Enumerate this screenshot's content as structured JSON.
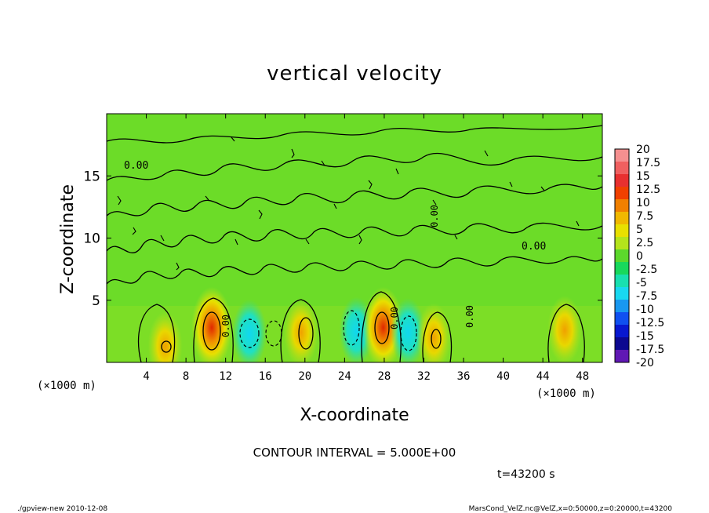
{
  "chart_data": {
    "type": "heatmap",
    "title": "vertical velocity",
    "xlabel": "X-coordinate",
    "ylabel": "Z-coordinate",
    "x_unit": "(×1000 m)",
    "y_unit": "(×1000 m)",
    "x_ticks": [
      4,
      8,
      12,
      16,
      20,
      24,
      28,
      32,
      36,
      40,
      44,
      48
    ],
    "y_ticks": [
      5,
      10,
      15
    ],
    "xlim": [
      0,
      50
    ],
    "ylim": [
      0,
      20
    ],
    "contour_labels": [
      "0.00",
      "0.00",
      "0.00",
      "0.00",
      "0.00",
      "0.00"
    ],
    "contour_interval_text": "CONTOUR INTERVAL = 5.000E+00",
    "time_text": "t=43200 s",
    "colorbar": {
      "labels": [
        "20",
        "17.5",
        "15",
        "12.5",
        "10",
        "7.5",
        "5",
        "2.5",
        "0",
        "-2.5",
        "-5",
        "-7.5",
        "-10",
        "-12.5",
        "-15",
        "-17.5",
        "-20"
      ],
      "colors": [
        "#f59090",
        "#f06060",
        "#e83030",
        "#f04000",
        "#f08000",
        "#f0b800",
        "#e8e000",
        "#b4e41c",
        "#5cd82c",
        "#18d85c",
        "#18e0b0",
        "#18d8f0",
        "#1898f0",
        "#1050f0",
        "#0818d0",
        "#0c0890",
        "#6018b4"
      ]
    },
    "features": [
      {
        "x": 10.6,
        "z": 2.8,
        "value": 10,
        "kind": "updraft"
      },
      {
        "x": 14.4,
        "z": 2.3,
        "value": -5,
        "kind": "downdraft"
      },
      {
        "x": 19.6,
        "z": 2.4,
        "value": 5,
        "kind": "updraft"
      },
      {
        "x": 25.2,
        "z": 2.5,
        "value": -7.5,
        "kind": "downdraft"
      },
      {
        "x": 27.9,
        "z": 2.8,
        "value": 15,
        "kind": "updraft"
      },
      {
        "x": 30.4,
        "z": 2.4,
        "value": -7.5,
        "kind": "downdraft"
      },
      {
        "x": 33.0,
        "z": 2.0,
        "value": 5,
        "kind": "updraft"
      },
      {
        "x": 46.2,
        "z": 2.6,
        "value": 5,
        "kind": "updraft"
      },
      {
        "x": 5.9,
        "z": 1.3,
        "value": 5,
        "kind": "updraft"
      }
    ]
  },
  "footer": {
    "left": "./gpview-new   2010-12-08",
    "right": "MarsCond_VelZ.nc@VelZ,x=0:50000,z=0:20000,t=43200"
  }
}
